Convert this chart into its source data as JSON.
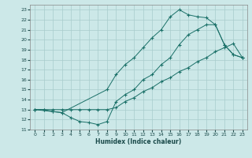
{
  "xlabel": "Humidex (Indice chaleur)",
  "background_color": "#cce8e8",
  "grid_color": "#a8cccc",
  "line_color": "#1a7068",
  "xlim": [
    -0.5,
    23.5
  ],
  "ylim": [
    11,
    23.5
  ],
  "xticks": [
    0,
    1,
    2,
    3,
    4,
    5,
    6,
    7,
    8,
    9,
    10,
    11,
    12,
    13,
    14,
    15,
    16,
    17,
    18,
    19,
    20,
    21,
    22,
    23
  ],
  "yticks": [
    11,
    12,
    13,
    14,
    15,
    16,
    17,
    18,
    19,
    20,
    21,
    22,
    23
  ],
  "line1_x": [
    0,
    1,
    2,
    3,
    8,
    9,
    10,
    11,
    12,
    13,
    14,
    15,
    16,
    17,
    18,
    19,
    20,
    21,
    22,
    23
  ],
  "line1_y": [
    13,
    13,
    12.8,
    12.7,
    15,
    16.5,
    17.5,
    18.2,
    19.2,
    20.2,
    21.0,
    22.3,
    23.0,
    22.5,
    22.3,
    22.2,
    21.5,
    19.5,
    18.5,
    18.2
  ],
  "line2_x": [
    0,
    2,
    3,
    4,
    5,
    6,
    7,
    8,
    9,
    10,
    11,
    12,
    13,
    14,
    15,
    16,
    17,
    18,
    19,
    20,
    21,
    22,
    23
  ],
  "line2_y": [
    13,
    12.8,
    12.7,
    12.2,
    11.8,
    11.7,
    11.5,
    11.8,
    13.8,
    14.5,
    15.0,
    16.0,
    16.5,
    17.5,
    18.2,
    19.5,
    20.5,
    21.0,
    21.5,
    21.5,
    19.5,
    18.5,
    18.2
  ],
  "line3_x": [
    0,
    1,
    2,
    3,
    4,
    5,
    6,
    7,
    8,
    9,
    10,
    11,
    12,
    13,
    14,
    15,
    16,
    17,
    18,
    19,
    20,
    21,
    22,
    23
  ],
  "line3_y": [
    13,
    13,
    13,
    13,
    13,
    13,
    13,
    13,
    13,
    13.2,
    13.8,
    14.2,
    14.8,
    15.2,
    15.8,
    16.2,
    16.8,
    17.2,
    17.8,
    18.2,
    18.8,
    19.2,
    19.6,
    18.2
  ]
}
